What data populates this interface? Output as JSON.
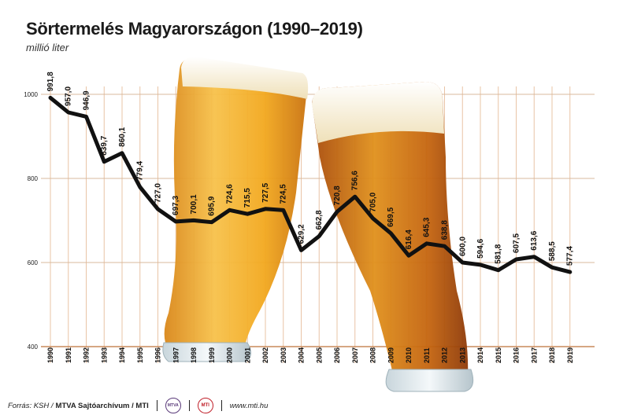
{
  "title": "Sörtermelés Magyarországon (1990–2019)",
  "subtitle": "millió liter",
  "footer": {
    "source": "Forrás: KSH /",
    "org": "MTVA Sajtóarchívum / MTI",
    "logo1": "MTVA",
    "logo2": "MTI",
    "web": "www.mti.hu"
  },
  "chart_data": {
    "type": "line",
    "title": "Sörtermelés Magyarországon (1990–2019)",
    "subtitle": "millió liter",
    "categories": [
      "1990",
      "1991",
      "1992",
      "1993",
      "1994",
      "1995",
      "1996",
      "1997",
      "1998",
      "1999",
      "2000",
      "2001",
      "2002",
      "2003",
      "2004",
      "2005",
      "2006",
      "2007",
      "2008",
      "2009",
      "2010",
      "2011",
      "2012",
      "2013",
      "2014",
      "2015",
      "2016",
      "2017",
      "2018",
      "2019"
    ],
    "values": [
      991.8,
      957.0,
      946.9,
      839.7,
      860.1,
      779.4,
      727.0,
      697.3,
      700.1,
      695.9,
      724.6,
      715.5,
      727.5,
      724.5,
      629.2,
      662.8,
      720.8,
      756.6,
      705.0,
      669.5,
      616.4,
      645.3,
      638.8,
      600.0,
      594.6,
      581.8,
      607.5,
      613.6,
      588.5,
      577.4
    ],
    "labels": [
      "991,8",
      "957,0",
      "946,9",
      "839,7",
      "860,1",
      "779,4",
      "727,0",
      "697,3",
      "700,1",
      "695,9",
      "724,6",
      "715,5",
      "727,5",
      "724,5",
      "629,2",
      "662,8",
      "720,8",
      "756,6",
      "705,0",
      "669,5",
      "616,4",
      "645,3",
      "638,8",
      "600,0",
      "594,6",
      "581,8",
      "607,5",
      "613,6",
      "588,5",
      "577,4"
    ],
    "yticks": [
      "400",
      "600",
      "800",
      "1000"
    ],
    "ylim": [
      400,
      1050
    ],
    "grid": true,
    "colors": {
      "line": "#111111",
      "grid_v": "#e9c4a6",
      "grid_h": "#d8b89c",
      "beer": "#f2a81e",
      "beer_dark": "#c9620f",
      "foam": "#fbf3dc"
    }
  }
}
